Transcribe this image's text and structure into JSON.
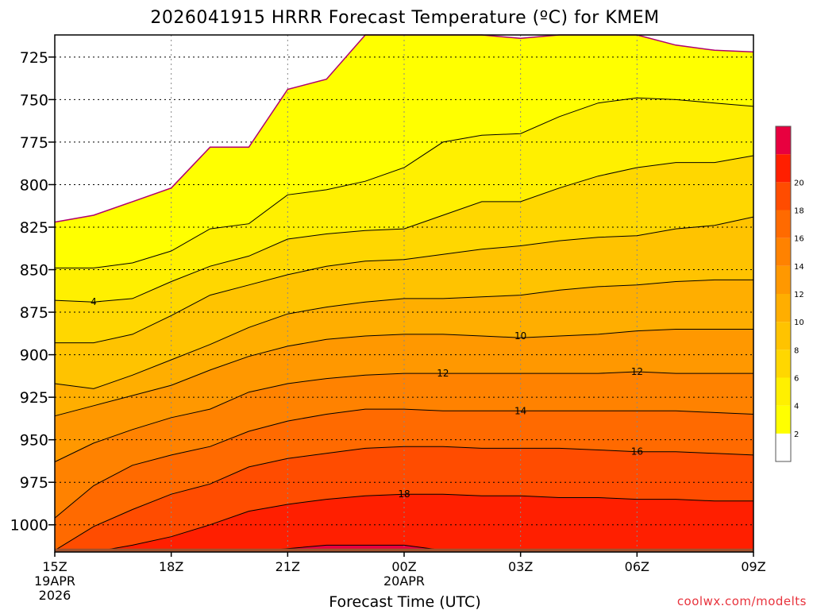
{
  "chart_data": {
    "type": "contour",
    "title": "2026041915 HRRR Forecast Temperature (ºC) for KMEM",
    "xlabel": "Forecast Time (UTC)",
    "credit": "coolwx.com/modelts",
    "x_hours": [
      0,
      18
    ],
    "y_pressure_range": [
      1016,
      712
    ],
    "y_ticks": [
      725,
      750,
      775,
      800,
      825,
      850,
      875,
      900,
      925,
      950,
      975,
      1000
    ],
    "x_ticks": [
      {
        "hour": 0,
        "lines": [
          "15Z",
          "19APR",
          "2026"
        ]
      },
      {
        "hour": 3,
        "lines": [
          "18Z"
        ]
      },
      {
        "hour": 6,
        "lines": [
          "21Z"
        ]
      },
      {
        "hour": 9,
        "lines": [
          "00Z",
          "20APR"
        ]
      },
      {
        "hour": 12,
        "lines": [
          "03Z"
        ]
      },
      {
        "hour": 15,
        "lines": [
          "06Z"
        ]
      },
      {
        "hour": 18,
        "lines": [
          "09Z"
        ]
      }
    ],
    "contour_hours": [
      0,
      1,
      2,
      3,
      4,
      5,
      6,
      7,
      8,
      9,
      10,
      11,
      12,
      13,
      14,
      15,
      16,
      17,
      18
    ],
    "isotherms": [
      {
        "temp": 0,
        "pressure": [
          822,
          818,
          810,
          802,
          778,
          778,
          744,
          738,
          712,
          712,
          712,
          712,
          714,
          712,
          712,
          712,
          718,
          721,
          722
        ]
      },
      {
        "temp": 2,
        "pressure": [
          849,
          849,
          846,
          839,
          826,
          823,
          806,
          803,
          798,
          790,
          775,
          771,
          770,
          760,
          752,
          749,
          750,
          752,
          754
        ]
      },
      {
        "temp": 4,
        "pressure": [
          868,
          869,
          867,
          857,
          848,
          842,
          832,
          829,
          827,
          826,
          818,
          810,
          810,
          802,
          795,
          790,
          787,
          787,
          783
        ]
      },
      {
        "temp": 6,
        "pressure": [
          893,
          893,
          888,
          877,
          865,
          859,
          853,
          848,
          845,
          844,
          841,
          838,
          836,
          833,
          831,
          830,
          826,
          824,
          819
        ]
      },
      {
        "temp": 8,
        "pressure": [
          917,
          920,
          912,
          903,
          894,
          884,
          876,
          872,
          869,
          867,
          867,
          866,
          865,
          862,
          860,
          859,
          857,
          856,
          856
        ]
      },
      {
        "temp": 10,
        "pressure": [
          936,
          930,
          924,
          918,
          909,
          901,
          895,
          891,
          889,
          888,
          888,
          889,
          890,
          889,
          888,
          886,
          885,
          885,
          885
        ]
      },
      {
        "temp": 12,
        "pressure": [
          963,
          952,
          944,
          937,
          932,
          922,
          917,
          914,
          912,
          911,
          911,
          911,
          911,
          911,
          911,
          910,
          911,
          911,
          911
        ]
      },
      {
        "temp": 14,
        "pressure": [
          996,
          977,
          965,
          959,
          954,
          945,
          939,
          935,
          932,
          932,
          933,
          933,
          933,
          933,
          933,
          933,
          933,
          934,
          935
        ]
      },
      {
        "temp": 16,
        "pressure": [
          1015,
          1001,
          991,
          982,
          976,
          966,
          961,
          958,
          955,
          954,
          954,
          955,
          955,
          955,
          956,
          957,
          957,
          958,
          959
        ]
      },
      {
        "temp": 18,
        "pressure": [
          1016,
          1016,
          1012,
          1007,
          1000,
          992,
          988,
          985,
          983,
          982,
          982,
          983,
          983,
          984,
          984,
          985,
          985,
          986,
          986
        ]
      },
      {
        "temp": 20,
        "pressure": [
          1016,
          1016,
          1016,
          1016,
          1016,
          1016,
          1014,
          1012,
          1012,
          1012,
          1015,
          1016,
          1016,
          1016,
          1016,
          1016,
          1016,
          1016,
          1016
        ]
      }
    ],
    "fill_colors": {
      "above_0": "#ffffff",
      "0_2": "#ffff00",
      "2_4": "#fff000",
      "4_6": "#ffd700",
      "6_8": "#ffc300",
      "8_10": "#ffae00",
      "10_12": "#ff9800",
      "12_14": "#ff8200",
      "14_16": "#ff6a00",
      "16_18": "#ff4c00",
      "18_20": "#ff1f00",
      "20_22": "#e8003f"
    },
    "isotherm_0_color": "#b0006e",
    "ground_color": "#a0522d",
    "contour_labels": [
      {
        "text": "4",
        "hour": 1.0,
        "pressure": 869
      },
      {
        "text": "10",
        "hour": 12.0,
        "pressure": 889
      },
      {
        "text": "12",
        "hour": 10.0,
        "pressure": 911
      },
      {
        "text": "12",
        "hour": 15.0,
        "pressure": 910
      },
      {
        "text": "14",
        "hour": 12.0,
        "pressure": 933
      },
      {
        "text": "16",
        "hour": 15.0,
        "pressure": 957
      },
      {
        "text": "18",
        "hour": 9.0,
        "pressure": 982
      }
    ],
    "colorbar": {
      "labels": [
        "2",
        "4",
        "6",
        "8",
        "10",
        "12",
        "14",
        "16",
        "18",
        "20"
      ],
      "colors": [
        "#ffffff",
        "#ffff00",
        "#fff000",
        "#ffd700",
        "#ffc300",
        "#ffae00",
        "#ff9800",
        "#ff8200",
        "#ff6a00",
        "#ff4c00",
        "#ff1f00",
        "#e8003f"
      ]
    }
  }
}
